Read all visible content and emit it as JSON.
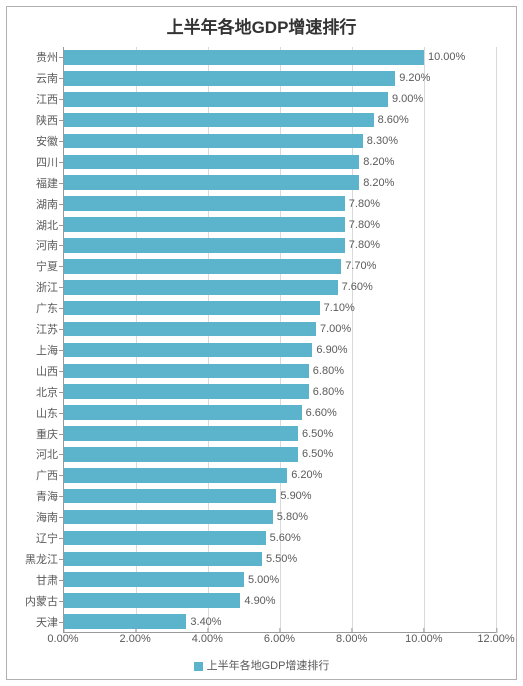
{
  "chart": {
    "type": "bar-horizontal",
    "title": "上半年各地GDP增速排行",
    "title_fontsize": 17,
    "title_color": "#333333",
    "background_color": "#ffffff",
    "border_color": "#b0b0b0",
    "bar_color": "#5cb3cc",
    "grid_color": "#d9d9d9",
    "axis_color": "#999999",
    "label_color": "#5a5a5a",
    "label_fontsize": 11,
    "value_label_fontsize": 11,
    "xlim": [
      0,
      12
    ],
    "x_ticks": [
      0,
      2,
      4,
      6,
      8,
      10,
      12
    ],
    "x_tick_labels": [
      "0.00%",
      "2.00%",
      "4.00%",
      "6.00%",
      "8.00%",
      "10.00%",
      "12.00%"
    ],
    "categories": [
      "贵州",
      "云南",
      "江西",
      "陕西",
      "安徽",
      "四川",
      "福建",
      "湖南",
      "湖北",
      "河南",
      "宁夏",
      "浙江",
      "广东",
      "江苏",
      "上海",
      "山西",
      "北京",
      "山东",
      "重庆",
      "河北",
      "广西",
      "青海",
      "海南",
      "辽宁",
      "黑龙江",
      "甘肃",
      "内蒙古",
      "天津"
    ],
    "values": [
      10.0,
      9.2,
      9.0,
      8.6,
      8.3,
      8.2,
      8.2,
      7.8,
      7.8,
      7.8,
      7.7,
      7.6,
      7.1,
      7.0,
      6.9,
      6.8,
      6.8,
      6.6,
      6.5,
      6.5,
      6.2,
      5.9,
      5.8,
      5.6,
      5.5,
      5.0,
      4.9,
      3.4
    ],
    "value_labels": [
      "10.00%",
      "9.20%",
      "9.00%",
      "8.60%",
      "8.30%",
      "8.20%",
      "8.20%",
      "7.80%",
      "7.80%",
      "7.80%",
      "7.70%",
      "7.60%",
      "7.10%",
      "7.00%",
      "6.90%",
      "6.80%",
      "6.80%",
      "6.60%",
      "6.50%",
      "6.50%",
      "6.20%",
      "5.90%",
      "5.80%",
      "5.60%",
      "5.50%",
      "5.00%",
      "4.90%",
      "3.40%"
    ],
    "bar_height_ratio": 0.7,
    "legend": {
      "label": "上半年各地GDP增速排行",
      "swatch_color": "#5cb3cc",
      "fontsize": 11
    }
  }
}
